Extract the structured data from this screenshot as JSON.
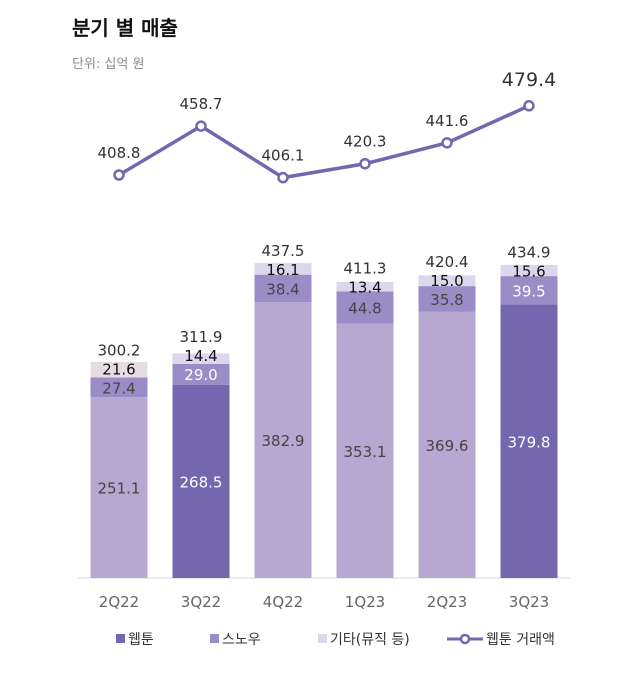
{
  "title": "분기 별 매출",
  "unit_label": "단위: 십억 원",
  "chart_data": {
    "type": "bar",
    "stacked": true,
    "categories": [
      "2Q22",
      "3Q22",
      "4Q22",
      "1Q23",
      "2Q23",
      "3Q23"
    ],
    "series": [
      {
        "name": "웹툰",
        "values": [
          251.1,
          268.5,
          382.9,
          353.1,
          369.6,
          379.8
        ],
        "color": "#7467b0"
      },
      {
        "name": "스노우",
        "values": [
          27.4,
          29.0,
          38.4,
          44.8,
          35.8,
          39.5
        ],
        "color": "#9a8dc7"
      },
      {
        "name": "기타(뮤직 등)",
        "values": [
          21.6,
          14.4,
          16.1,
          13.4,
          15.0,
          15.6
        ],
        "color": "#dcd7ec"
      }
    ],
    "totals": [
      300.2,
      311.9,
      437.5,
      411.3,
      420.4,
      434.9
    ],
    "highlighted_categories": [
      "3Q22",
      "3Q23"
    ],
    "webtoon_light_color": "#b6a8d1",
    "line_series": {
      "name": "웹툰 거래액",
      "values": [
        408.8,
        458.7,
        406.1,
        420.3,
        441.6,
        479.4
      ],
      "color": "#7467b0"
    },
    "legend_position": "bottom",
    "grid": false
  }
}
